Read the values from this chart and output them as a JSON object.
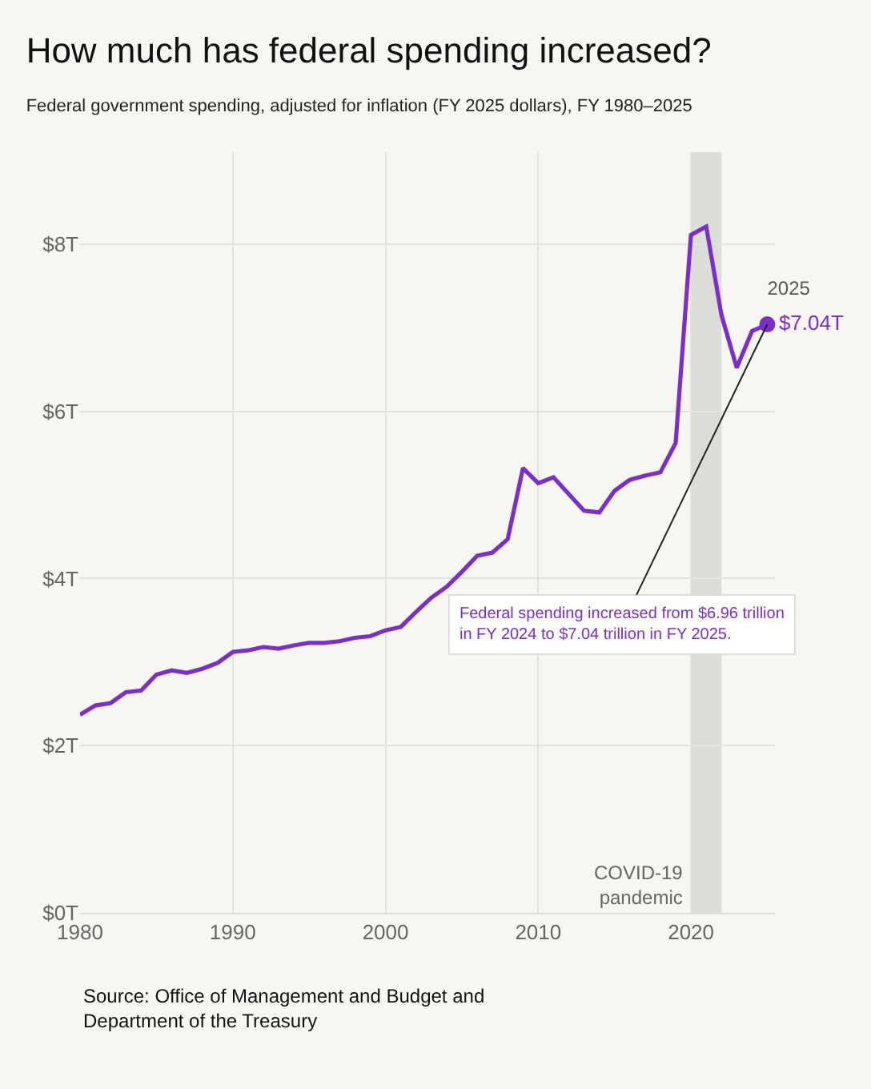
{
  "chart_data": {
    "type": "line",
    "title": "How much has federal spending increased?",
    "subtitle": "Federal government spending, adjusted for inflation (FY 2025 dollars), FY 1980–2025",
    "x": [
      1980,
      1981,
      1982,
      1983,
      1984,
      1985,
      1986,
      1987,
      1988,
      1989,
      1990,
      1991,
      1992,
      1993,
      1994,
      1995,
      1996,
      1997,
      1998,
      1999,
      2000,
      2001,
      2002,
      2003,
      2004,
      2005,
      2006,
      2007,
      2008,
      2009,
      2010,
      2011,
      2012,
      2013,
      2014,
      2015,
      2016,
      2017,
      2018,
      2019,
      2020,
      2021,
      2022,
      2023,
      2024,
      2025
    ],
    "series": [
      {
        "color": "#7b2fc9",
        "values": [
          2.37,
          2.48,
          2.51,
          2.64,
          2.66,
          2.85,
          2.9,
          2.87,
          2.92,
          2.99,
          3.12,
          3.14,
          3.18,
          3.16,
          3.2,
          3.23,
          3.23,
          3.25,
          3.29,
          3.31,
          3.38,
          3.42,
          3.6,
          3.77,
          3.9,
          4.08,
          4.27,
          4.31,
          4.47,
          5.32,
          5.14,
          5.21,
          5.01,
          4.81,
          4.79,
          5.05,
          5.18,
          5.23,
          5.27,
          5.62,
          8.11,
          8.21,
          7.15,
          6.52,
          6.96,
          7.04
        ]
      }
    ],
    "xlim": [
      1980,
      2025.5
    ],
    "xticks": [
      1980,
      1990,
      2000,
      2010,
      2020
    ],
    "ylim": [
      0,
      9.1
    ],
    "yticks": [
      {
        "value": 0,
        "label": "$0T"
      },
      {
        "value": 2,
        "label": "$2T"
      },
      {
        "value": 4,
        "label": "$4T"
      },
      {
        "value": 6,
        "label": "$6T"
      },
      {
        "value": 8,
        "label": "$8T"
      }
    ],
    "grid": true,
    "marker": "none",
    "line_style": "solid",
    "bands": [
      {
        "axis": "x",
        "from": 2020,
        "to": 2022,
        "label": "COVID-19 pandemic",
        "color": "#dcdcd8"
      }
    ],
    "annotations": [
      "2025",
      "$7.04T",
      "Federal spending increased from $6.96 trillion in FY 2024 to $7.04 trillion in FY 2025.",
      "Source: Office of Management and Budget and Department of the Treasury"
    ]
  }
}
